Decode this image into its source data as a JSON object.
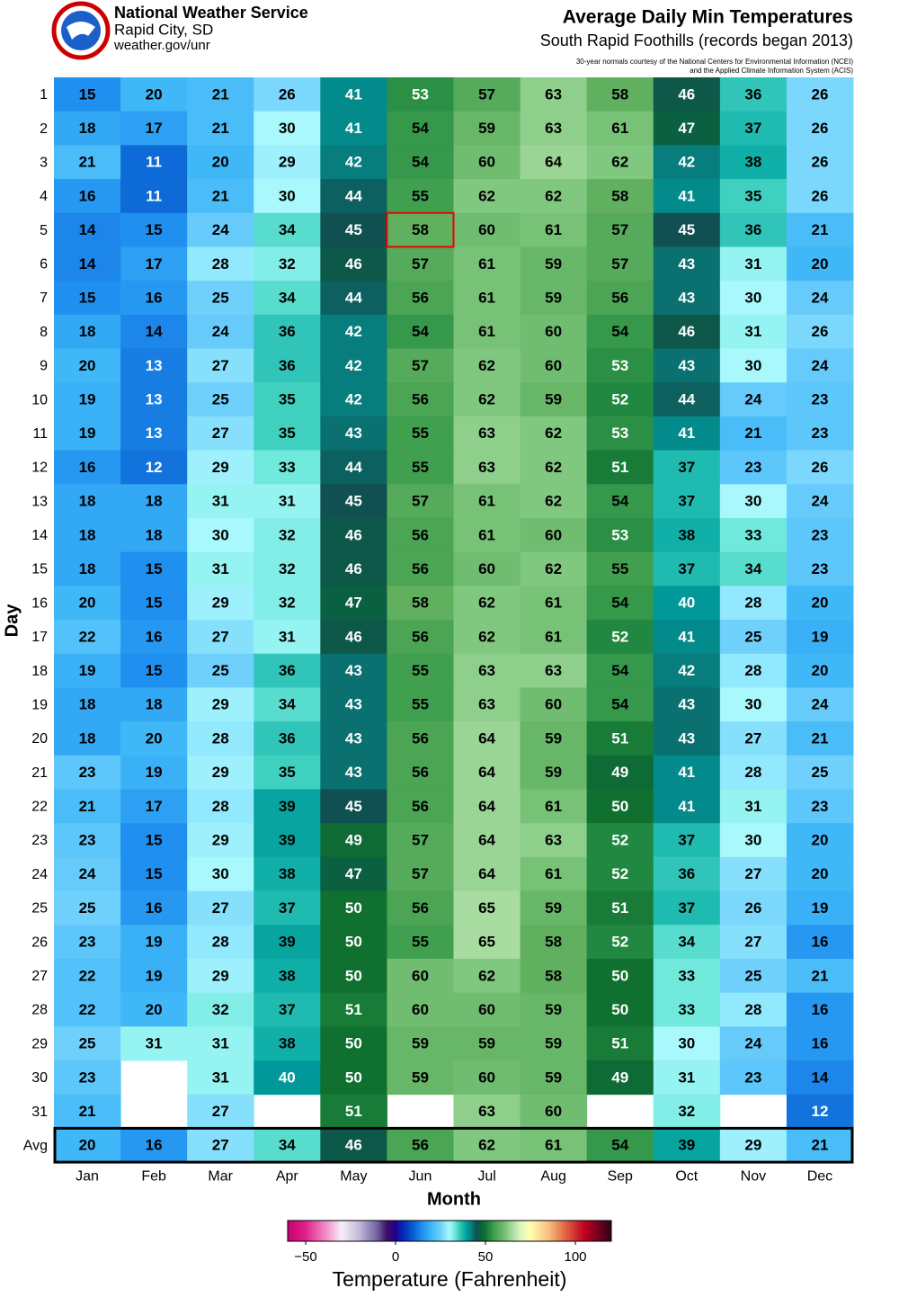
{
  "header": {
    "agency": "National Weather Service",
    "office": "Rapid City, SD",
    "url": "weather.gov/unr"
  },
  "chart_data": {
    "type": "heatmap",
    "title": "Average Daily Min Temperatures",
    "subtitle": "South Rapid Foothills (records began 2013)",
    "notes": [
      "30-year normals courtesy of the National Centers for Environmental Information (NCEI)",
      "and the Applied Climate Information System (ACIS)"
    ],
    "xlabel": "Month",
    "ylabel": "Day",
    "categories": [
      "Jan",
      "Feb",
      "Mar",
      "Apr",
      "May",
      "Jun",
      "Jul",
      "Aug",
      "Sep",
      "Oct",
      "Nov",
      "Dec"
    ],
    "rows": [
      "1",
      "2",
      "3",
      "4",
      "5",
      "6",
      "7",
      "8",
      "9",
      "10",
      "11",
      "12",
      "13",
      "14",
      "15",
      "16",
      "17",
      "18",
      "19",
      "20",
      "21",
      "22",
      "23",
      "24",
      "25",
      "26",
      "27",
      "28",
      "29",
      "30",
      "31",
      "Avg"
    ],
    "values": [
      [
        15,
        18,
        21,
        16,
        14,
        14,
        15,
        18,
        20,
        19,
        19,
        16,
        18,
        18,
        18,
        20,
        22,
        19,
        18,
        18,
        23,
        21,
        23,
        24,
        25,
        23,
        22,
        22,
        25,
        23,
        21,
        20
      ],
      [
        20,
        17,
        11,
        11,
        15,
        17,
        16,
        14,
        13,
        13,
        13,
        12,
        18,
        18,
        15,
        15,
        16,
        15,
        18,
        20,
        19,
        17,
        15,
        15,
        16,
        19,
        19,
        20,
        31,
        null,
        null,
        16
      ],
      [
        21,
        21,
        20,
        21,
        24,
        28,
        25,
        24,
        27,
        25,
        27,
        29,
        31,
        30,
        31,
        29,
        27,
        25,
        29,
        28,
        29,
        28,
        29,
        30,
        27,
        28,
        29,
        32,
        31,
        31,
        27,
        27
      ],
      [
        26,
        30,
        29,
        30,
        34,
        32,
        34,
        36,
        36,
        35,
        35,
        33,
        31,
        32,
        32,
        32,
        31,
        36,
        34,
        36,
        35,
        39,
        39,
        38,
        37,
        39,
        38,
        37,
        38,
        40,
        null,
        34
      ],
      [
        41,
        41,
        42,
        44,
        45,
        46,
        44,
        42,
        42,
        42,
        43,
        44,
        45,
        46,
        46,
        47,
        46,
        43,
        43,
        43,
        43,
        45,
        49,
        47,
        50,
        50,
        50,
        51,
        50,
        50,
        51,
        46
      ],
      [
        53,
        54,
        54,
        55,
        58,
        57,
        56,
        54,
        57,
        56,
        55,
        55,
        57,
        56,
        56,
        58,
        56,
        55,
        55,
        56,
        56,
        56,
        57,
        57,
        56,
        55,
        60,
        60,
        59,
        59,
        null,
        56
      ],
      [
        57,
        59,
        60,
        62,
        60,
        61,
        61,
        61,
        62,
        62,
        63,
        63,
        61,
        61,
        60,
        62,
        62,
        63,
        63,
        64,
        64,
        64,
        64,
        64,
        65,
        65,
        62,
        60,
        59,
        60,
        63,
        62
      ],
      [
        63,
        63,
        64,
        62,
        61,
        59,
        59,
        60,
        60,
        59,
        62,
        62,
        62,
        60,
        62,
        61,
        61,
        63,
        60,
        59,
        59,
        61,
        63,
        61,
        59,
        58,
        58,
        59,
        59,
        59,
        60,
        61
      ],
      [
        58,
        61,
        62,
        58,
        57,
        57,
        56,
        54,
        53,
        52,
        53,
        51,
        54,
        53,
        55,
        54,
        52,
        54,
        54,
        51,
        49,
        50,
        52,
        52,
        51,
        52,
        50,
        50,
        51,
        49,
        null,
        54
      ],
      [
        46,
        47,
        42,
        41,
        45,
        43,
        43,
        46,
        43,
        44,
        41,
        37,
        37,
        38,
        37,
        40,
        41,
        42,
        43,
        43,
        41,
        41,
        37,
        36,
        37,
        34,
        33,
        33,
        30,
        31,
        32,
        39
      ],
      [
        36,
        37,
        38,
        35,
        36,
        31,
        30,
        31,
        30,
        24,
        21,
        23,
        30,
        33,
        34,
        28,
        25,
        28,
        30,
        27,
        28,
        31,
        30,
        27,
        26,
        27,
        25,
        28,
        24,
        23,
        null,
        29
      ],
      [
        26,
        26,
        26,
        26,
        21,
        20,
        24,
        26,
        24,
        23,
        23,
        26,
        24,
        23,
        23,
        20,
        19,
        20,
        24,
        21,
        25,
        23,
        20,
        20,
        19,
        16,
        21,
        16,
        16,
        14,
        12,
        21
      ]
    ],
    "colorbar_label": "Temperature (Fahrenheit)",
    "clim": [
      -60,
      120
    ],
    "cticks": [
      {
        "value": -50,
        "label": "−50"
      },
      0,
      50,
      100
    ],
    "colorscale": [
      [
        -60,
        "#c8006e"
      ],
      [
        -50,
        "#e0208c"
      ],
      [
        -40,
        "#f080c0"
      ],
      [
        -30,
        "#f8eef8"
      ],
      [
        -20,
        "#c0b8d8"
      ],
      [
        -10,
        "#7060a0"
      ],
      [
        -5,
        "#401060"
      ],
      [
        0,
        "#200090"
      ],
      [
        5,
        "#0030c0"
      ],
      [
        10,
        "#0a60d0"
      ],
      [
        15,
        "#2090f0"
      ],
      [
        20,
        "#40b8f8"
      ],
      [
        25,
        "#70d0fc"
      ],
      [
        30,
        "#a8f8fc"
      ],
      [
        33,
        "#70e8dc"
      ],
      [
        35,
        "#40d0c0"
      ],
      [
        38,
        "#10b0a8"
      ],
      [
        40,
        "#009898"
      ],
      [
        43,
        "#0a7070"
      ],
      [
        45,
        "#105050"
      ],
      [
        47,
        "#0a6040"
      ],
      [
        50,
        "#107030"
      ],
      [
        52,
        "#208840"
      ],
      [
        55,
        "#40a050"
      ],
      [
        58,
        "#60b060"
      ],
      [
        62,
        "#80c880"
      ],
      [
        65,
        "#a8dca0"
      ],
      [
        70,
        "#e0f8c0"
      ],
      [
        75,
        "#ffffb0"
      ],
      [
        85,
        "#f8c080"
      ],
      [
        95,
        "#e06040"
      ],
      [
        105,
        "#c00020"
      ],
      [
        115,
        "#600020"
      ],
      [
        120,
        "#300010"
      ]
    ]
  }
}
